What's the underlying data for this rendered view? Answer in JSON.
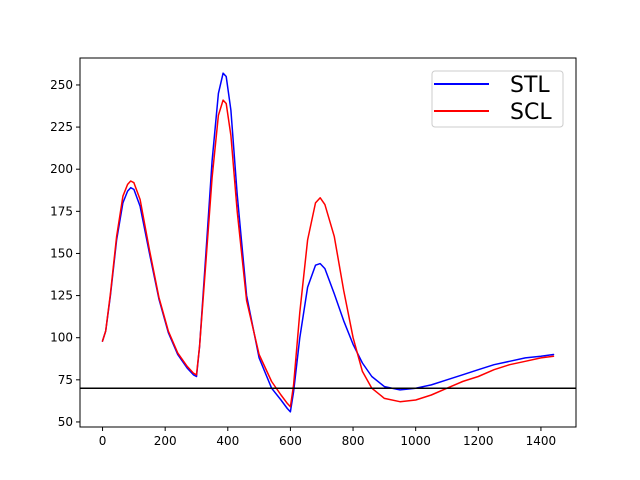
{
  "chart_data": {
    "type": "line",
    "xlim": [
      -72,
      1512
    ],
    "ylim": [
      47,
      266
    ],
    "xticks": [
      0,
      200,
      400,
      600,
      800,
      1000,
      1200,
      1400
    ],
    "yticks": [
      50,
      75,
      100,
      125,
      150,
      175,
      200,
      225,
      250
    ],
    "tick_labels_x": [
      "0",
      "200",
      "400",
      "600",
      "800",
      "1000",
      "1200",
      "1400"
    ],
    "tick_labels_y": [
      "50",
      "75",
      "100",
      "125",
      "150",
      "175",
      "200",
      "225",
      "250"
    ],
    "grid": false,
    "legend_position": "top-right",
    "hline": {
      "y": 70,
      "color": "#000000"
    },
    "series": [
      {
        "name": "STL",
        "color": "#0000ff",
        "points": [
          [
            0,
            98
          ],
          [
            10,
            104
          ],
          [
            25,
            125
          ],
          [
            45,
            158
          ],
          [
            65,
            180
          ],
          [
            80,
            187
          ],
          [
            90,
            189
          ],
          [
            100,
            188
          ],
          [
            120,
            178
          ],
          [
            150,
            150
          ],
          [
            180,
            123
          ],
          [
            210,
            103
          ],
          [
            240,
            90
          ],
          [
            270,
            82
          ],
          [
            290,
            78
          ],
          [
            300,
            77
          ],
          [
            310,
            95
          ],
          [
            330,
            150
          ],
          [
            350,
            205
          ],
          [
            370,
            245
          ],
          [
            385,
            257
          ],
          [
            395,
            255
          ],
          [
            410,
            235
          ],
          [
            430,
            185
          ],
          [
            460,
            125
          ],
          [
            500,
            88
          ],
          [
            540,
            70
          ],
          [
            570,
            63
          ],
          [
            590,
            58
          ],
          [
            600,
            56
          ],
          [
            610,
            68
          ],
          [
            630,
            100
          ],
          [
            655,
            130
          ],
          [
            680,
            143
          ],
          [
            695,
            144
          ],
          [
            710,
            141
          ],
          [
            740,
            126
          ],
          [
            770,
            110
          ],
          [
            800,
            96
          ],
          [
            830,
            85
          ],
          [
            860,
            77
          ],
          [
            900,
            71
          ],
          [
            950,
            69
          ],
          [
            1000,
            70
          ],
          [
            1050,
            72
          ],
          [
            1100,
            75
          ],
          [
            1150,
            78
          ],
          [
            1200,
            81
          ],
          [
            1250,
            84
          ],
          [
            1300,
            86
          ],
          [
            1350,
            88
          ],
          [
            1400,
            89
          ],
          [
            1440,
            90
          ]
        ]
      },
      {
        "name": "SCL",
        "color": "#ff0000",
        "points": [
          [
            0,
            98
          ],
          [
            10,
            104
          ],
          [
            25,
            126
          ],
          [
            45,
            160
          ],
          [
            65,
            184
          ],
          [
            80,
            191
          ],
          [
            90,
            193
          ],
          [
            100,
            192
          ],
          [
            120,
            182
          ],
          [
            150,
            152
          ],
          [
            180,
            124
          ],
          [
            210,
            104
          ],
          [
            240,
            91
          ],
          [
            270,
            83
          ],
          [
            290,
            79
          ],
          [
            300,
            78
          ],
          [
            310,
            95
          ],
          [
            330,
            145
          ],
          [
            350,
            195
          ],
          [
            370,
            232
          ],
          [
            385,
            241
          ],
          [
            395,
            239
          ],
          [
            410,
            220
          ],
          [
            430,
            175
          ],
          [
            460,
            122
          ],
          [
            500,
            90
          ],
          [
            540,
            74
          ],
          [
            570,
            66
          ],
          [
            590,
            61
          ],
          [
            600,
            59
          ],
          [
            610,
            72
          ],
          [
            630,
            115
          ],
          [
            655,
            158
          ],
          [
            680,
            180
          ],
          [
            695,
            183
          ],
          [
            710,
            179
          ],
          [
            740,
            160
          ],
          [
            770,
            128
          ],
          [
            800,
            100
          ],
          [
            830,
            80
          ],
          [
            860,
            70
          ],
          [
            900,
            64
          ],
          [
            950,
            62
          ],
          [
            1000,
            63
          ],
          [
            1050,
            66
          ],
          [
            1100,
            70
          ],
          [
            1150,
            74
          ],
          [
            1200,
            77
          ],
          [
            1250,
            81
          ],
          [
            1300,
            84
          ],
          [
            1350,
            86
          ],
          [
            1400,
            88
          ],
          [
            1440,
            89
          ]
        ]
      }
    ]
  }
}
